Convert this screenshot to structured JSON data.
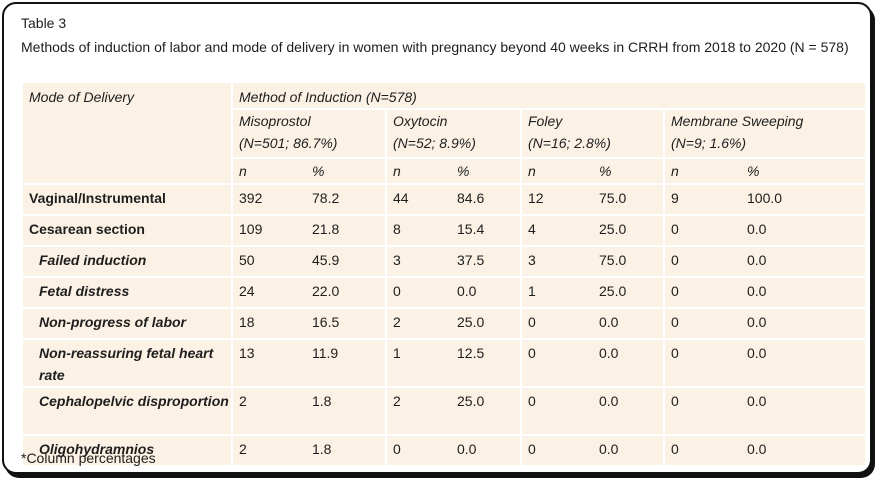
{
  "caption": {
    "label": "Table 3",
    "title": "Methods of induction of labor and mode of delivery in women with pregnancy beyond 40 weeks in CRRH from 2018 to 2020 (N = 578)"
  },
  "header": {
    "mode_label": "Mode of Delivery",
    "method_label": "Method of Induction (N=578)",
    "methods": [
      {
        "name": "Misoprostol",
        "detail": "(N=501; 86.7%)"
      },
      {
        "name": "Oxytocin",
        "detail": "(N=52; 8.9%)"
      },
      {
        "name": "Foley",
        "detail": "(N=16; 2.8%)"
      },
      {
        "name": "Membrane Sweeping",
        "detail": "(N=9; 1.6%)"
      }
    ],
    "n_label": "n",
    "pct_label": "%"
  },
  "rows": [
    {
      "label": "Vaginal/Instrumental",
      "values": [
        "392",
        "78.2",
        "44",
        "84.6",
        "12",
        "75.0",
        "9",
        "100.0"
      ]
    },
    {
      "label": "Cesarean section",
      "values": [
        "109",
        "21.8",
        "8",
        "15.4",
        "4",
        "25.0",
        "0",
        "0.0"
      ]
    },
    {
      "label": "Failed induction",
      "values": [
        "50",
        "45.9",
        "3",
        "37.5",
        "3",
        "75.0",
        "0",
        "0.0"
      ]
    },
    {
      "label": "Fetal distress",
      "values": [
        "24",
        "22.0",
        "0",
        "0.0",
        "1",
        "25.0",
        "0",
        "0.0"
      ]
    },
    {
      "label": "Non-progress of labor",
      "values": [
        "18",
        "16.5",
        "2",
        "25.0",
        "0",
        "0.0",
        "0",
        "0.0"
      ]
    },
    {
      "label": "Non-reassuring fetal heart rate",
      "values": [
        "13",
        "11.9",
        "1",
        "12.5",
        "0",
        "0.0",
        "0",
        "0.0"
      ]
    },
    {
      "label": "Cephalopelvic disproportion",
      "values": [
        "2",
        "1.8",
        "2",
        "25.0",
        "0",
        "0.0",
        "0",
        "0.0"
      ]
    },
    {
      "label": "Oligohydramnios",
      "values": [
        "2",
        "1.8",
        "0",
        "0.0",
        "0",
        "0.0",
        "0",
        "0.0"
      ]
    }
  ],
  "footnote": "*Column percentages"
}
